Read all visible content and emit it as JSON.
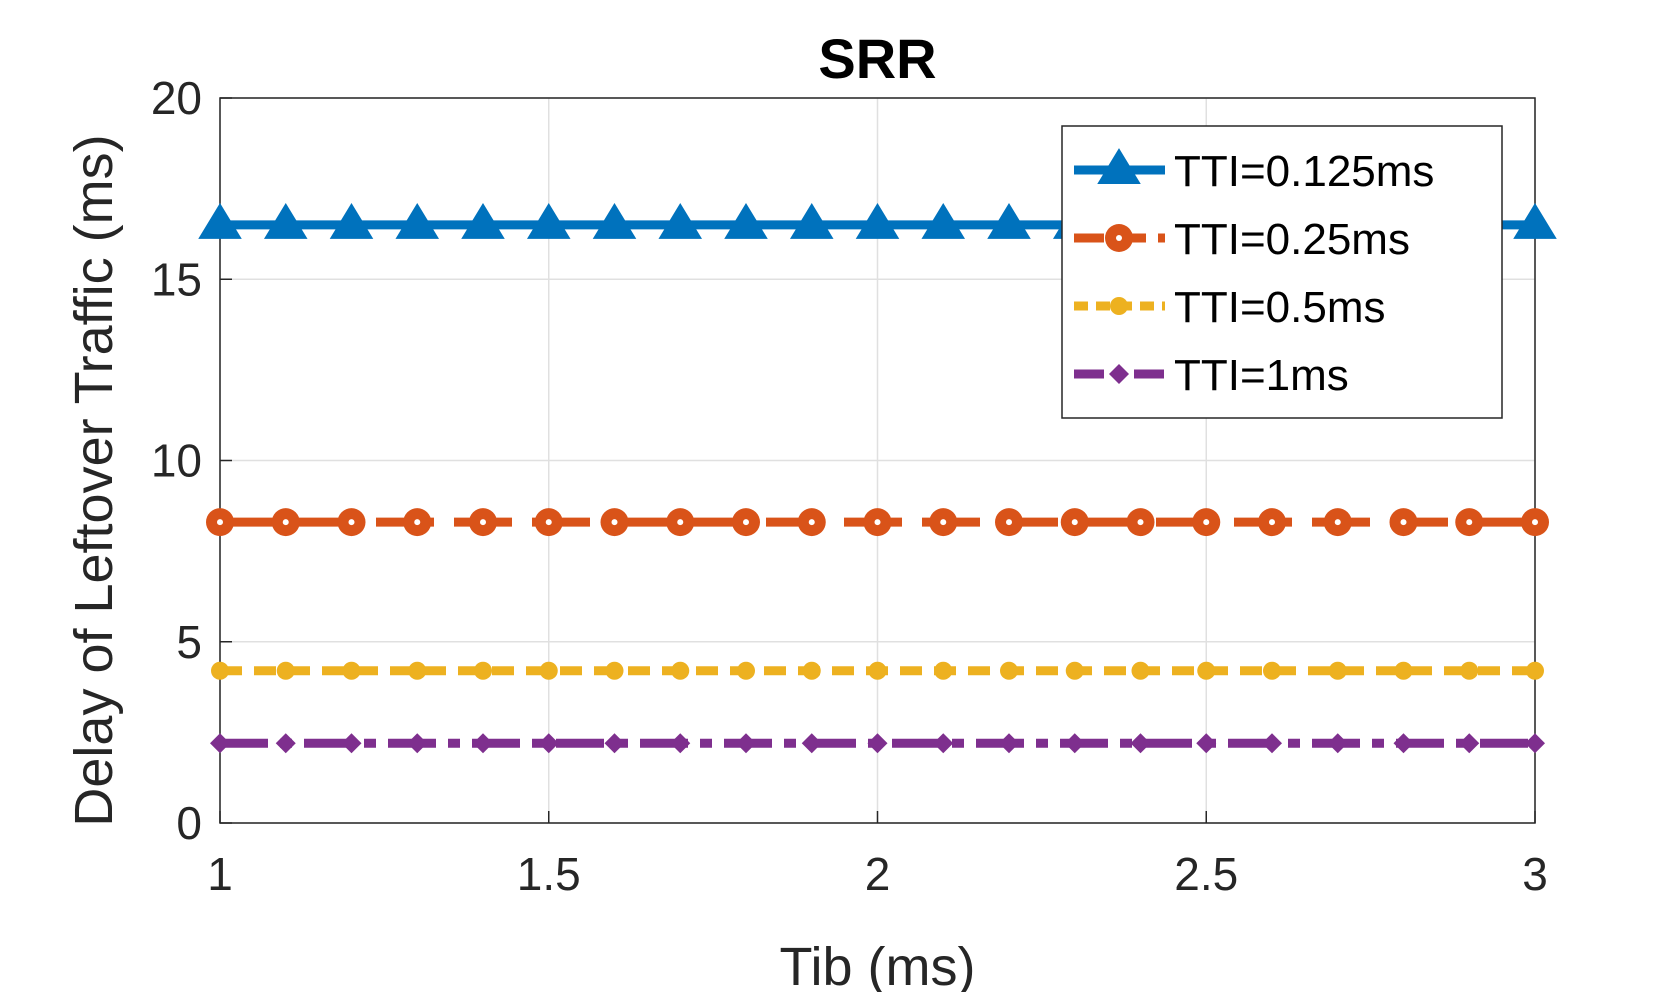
{
  "chart_data": {
    "type": "line",
    "title": "SRR",
    "xlabel": "Tib (ms)",
    "ylabel": "Delay of Leftover Traffic (ms)",
    "xlim": [
      1,
      3
    ],
    "ylim": [
      0,
      20
    ],
    "xticks": [
      1,
      1.5,
      2,
      2.5,
      3
    ],
    "xtick_labels": [
      "1",
      "1.5",
      "2",
      "2.5",
      "3"
    ],
    "yticks": [
      0,
      5,
      10,
      15,
      20
    ],
    "ytick_labels": [
      "0",
      "5",
      "10",
      "15",
      "20"
    ],
    "grid": true,
    "legend_position": "top-right",
    "x": [
      1.0,
      1.1,
      1.2,
      1.3,
      1.4,
      1.5,
      1.6,
      1.7,
      1.8,
      1.9,
      2.0,
      2.1,
      2.2,
      2.3,
      2.4,
      2.5,
      2.6,
      2.7,
      2.8,
      2.9,
      3.0
    ],
    "series": [
      {
        "name": "TTI=0.125ms",
        "color": "#0072BD",
        "marker": "triangle",
        "line_style": "solid",
        "values": [
          16.5,
          16.5,
          16.5,
          16.5,
          16.5,
          16.5,
          16.5,
          16.5,
          16.5,
          16.5,
          16.5,
          16.5,
          16.5,
          16.5,
          16.5,
          16.5,
          16.5,
          16.5,
          16.5,
          16.5,
          16.5
        ]
      },
      {
        "name": "TTI=0.25ms",
        "color": "#D95319",
        "marker": "circle",
        "line_style": "dashed",
        "values": [
          8.3,
          8.3,
          8.3,
          8.3,
          8.3,
          8.3,
          8.3,
          8.3,
          8.3,
          8.3,
          8.3,
          8.3,
          8.3,
          8.3,
          8.3,
          8.3,
          8.3,
          8.3,
          8.3,
          8.3,
          8.3
        ]
      },
      {
        "name": "TTI=0.5ms",
        "color": "#EDB120",
        "marker": "small-circle",
        "line_style": "dotted",
        "values": [
          4.2,
          4.2,
          4.2,
          4.2,
          4.2,
          4.2,
          4.2,
          4.2,
          4.2,
          4.2,
          4.2,
          4.2,
          4.2,
          4.2,
          4.2,
          4.2,
          4.2,
          4.2,
          4.2,
          4.2,
          4.2
        ]
      },
      {
        "name": "TTI=1ms",
        "color": "#7E2F8E",
        "marker": "small-diamond",
        "line_style": "dash-dot",
        "values": [
          2.2,
          2.2,
          2.2,
          2.2,
          2.2,
          2.2,
          2.2,
          2.2,
          2.2,
          2.2,
          2.2,
          2.2,
          2.2,
          2.2,
          2.2,
          2.2,
          2.2,
          2.2,
          2.2,
          2.2,
          2.2
        ]
      }
    ]
  }
}
